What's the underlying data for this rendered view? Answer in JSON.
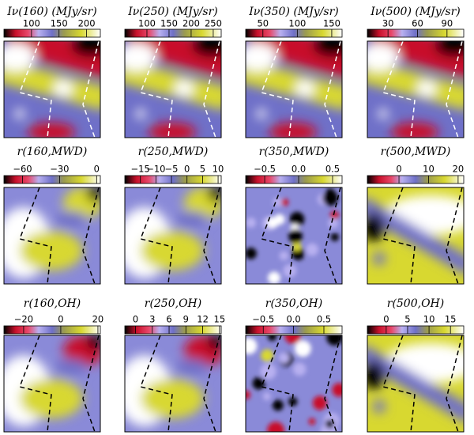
{
  "chart_data": [
    {
      "type": "heatmap",
      "title": "Iν(160)  (MJy/sr)",
      "clim": [
        50,
        225
      ],
      "ticks": [
        100,
        150,
        200
      ]
    },
    {
      "type": "heatmap",
      "title": "Iν(250)  (MJy/sr)",
      "clim": [
        50,
        268
      ],
      "ticks": [
        100,
        150,
        200,
        250
      ]
    },
    {
      "type": "heatmap",
      "title": "Iν(350)  (MJy/sr)",
      "clim": [
        25,
        165
      ],
      "ticks": [
        50,
        100,
        150
      ]
    },
    {
      "type": "heatmap",
      "title": "Iν(500)  (MJy/sr)",
      "clim": [
        9,
        107
      ],
      "ticks": [
        30,
        60,
        90
      ]
    },
    {
      "type": "heatmap",
      "title": "r(160,MWD)",
      "clim": [
        -75,
        3
      ],
      "ticks": [
        {
          "value": -60,
          "label": "−60"
        },
        {
          "value": -30,
          "label": "−30"
        },
        0
      ]
    },
    {
      "type": "heatmap",
      "title": "r(250,MWD)",
      "clim": [
        -20,
        11
      ],
      "ticks": [
        {
          "value": -15,
          "label": "−15"
        },
        {
          "value": -10,
          "label": "−10"
        },
        {
          "value": -5,
          "label": "−5"
        },
        0,
        5,
        10
      ]
    },
    {
      "type": "heatmap",
      "title": "r(350,MWD)",
      "clim": [
        -0.78,
        0.64
      ],
      "ticks": [
        {
          "value": -0.5,
          "label": "−0.5"
        },
        {
          "value": 0,
          "label": "0.0"
        },
        0.5
      ]
    },
    {
      "type": "heatmap",
      "title": "r(500,MWD)",
      "clim": [
        -10.7,
        21.9
      ],
      "ticks": [
        0,
        10,
        20
      ]
    },
    {
      "type": "heatmap",
      "title": "r(160,OH)",
      "clim": [
        -30.6,
        21.3
      ],
      "ticks": [
        {
          "value": -20,
          "label": "−20"
        },
        0,
        20
      ]
    },
    {
      "type": "heatmap",
      "title": "r(250,OH)",
      "clim": [
        -1.9,
        15.3
      ],
      "ticks": [
        0,
        3,
        6,
        9,
        12,
        15
      ]
    },
    {
      "type": "heatmap",
      "title": "r(350,OH)",
      "clim": [
        -0.79,
        0.8
      ],
      "ticks": [
        {
          "value": -0.5,
          "label": "−0.5"
        },
        {
          "value": 0,
          "label": "0.0"
        },
        0.5
      ]
    },
    {
      "type": "heatmap",
      "title": "r(500,OH)",
      "clim": [
        -4.4,
        18.1
      ],
      "ticks": [
        0,
        5,
        10,
        15
      ]
    }
  ]
}
